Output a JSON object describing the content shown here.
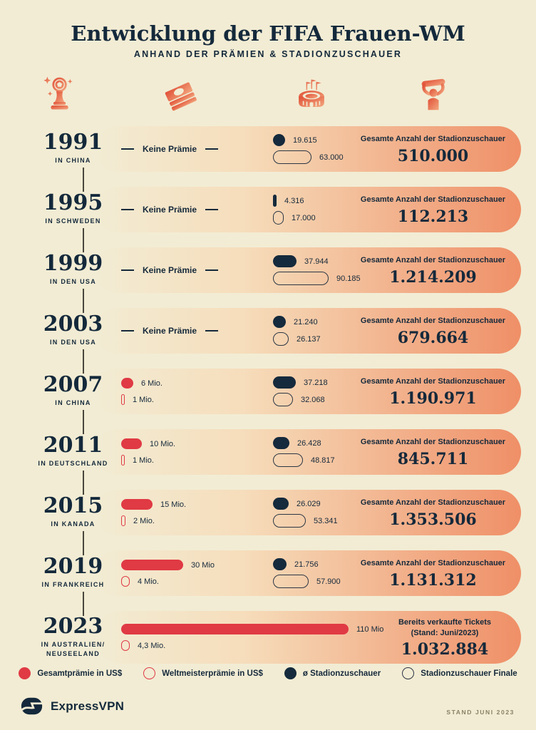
{
  "header": {
    "title": "Entwicklung der FIFA Frauen-WM",
    "subtitle": "ANHAND DER PRÄMIEN & STADIONZUSCHAUER"
  },
  "header_icons": [
    {
      "name": "trophy-icon"
    },
    {
      "name": "money-icon"
    },
    {
      "name": "stadium-icon"
    },
    {
      "name": "fan-icon"
    }
  ],
  "colors": {
    "background": "#F2ECD4",
    "navy": "#14293B",
    "red": "#E03A44",
    "band_salmon": "#EF8F67",
    "note_gray": "#8A8165"
  },
  "rows": [
    {
      "year": "1991",
      "location": "IN CHINA",
      "prize": {
        "type": "none",
        "label": "Keine Prämie"
      },
      "attendance": {
        "avg": 19615,
        "avg_label": "19.615",
        "final": 63000,
        "final_label": "63.000"
      },
      "total": {
        "caption": "Gesamte Anzahl der Stadionzuschauer",
        "value": "510.000"
      }
    },
    {
      "year": "1995",
      "location": "IN SCHWEDEN",
      "prize": {
        "type": "none",
        "label": "Keine Prämie"
      },
      "attendance": {
        "avg": 4316,
        "avg_label": "4.316",
        "final": 17000,
        "final_label": "17.000"
      },
      "total": {
        "caption": "Gesamte Anzahl der Stadionzuschauer",
        "value": "112.213"
      }
    },
    {
      "year": "1999",
      "location": "IN DEN USA",
      "prize": {
        "type": "none",
        "label": "Keine Prämie"
      },
      "attendance": {
        "avg": 37944,
        "avg_label": "37.944",
        "final": 90185,
        "final_label": "90.185"
      },
      "total": {
        "caption": "Gesamte Anzahl der Stadionzuschauer",
        "value": "1.214.209"
      }
    },
    {
      "year": "2003",
      "location": "IN DEN USA",
      "prize": {
        "type": "none",
        "label": "Keine Prämie"
      },
      "attendance": {
        "avg": 21240,
        "avg_label": "21.240",
        "final": 26137,
        "final_label": "26.137"
      },
      "total": {
        "caption": "Gesamte Anzahl der Stadionzuschauer",
        "value": "679.664"
      }
    },
    {
      "year": "2007",
      "location": "IN CHINA",
      "prize": {
        "type": "bars",
        "total_mio": 6,
        "total_label": "6 Mio.",
        "winner_mio": 1,
        "winner_label": "1 Mio."
      },
      "attendance": {
        "avg": 37218,
        "avg_label": "37.218",
        "final": 32068,
        "final_label": "32.068"
      },
      "total": {
        "caption": "Gesamte Anzahl der Stadionzuschauer",
        "value": "1.190.971"
      }
    },
    {
      "year": "2011",
      "location": "IN DEUTSCHLAND",
      "prize": {
        "type": "bars",
        "total_mio": 10,
        "total_label": "10 Mio.",
        "winner_mio": 1,
        "winner_label": "1 Mio."
      },
      "attendance": {
        "avg": 26428,
        "avg_label": "26.428",
        "final": 48817,
        "final_label": "48.817"
      },
      "total": {
        "caption": "Gesamte Anzahl der Stadionzuschauer",
        "value": "845.711"
      }
    },
    {
      "year": "2015",
      "location": "IN KANADA",
      "prize": {
        "type": "bars",
        "total_mio": 15,
        "total_label": "15 Mio.",
        "winner_mio": 2,
        "winner_label": "2 Mio."
      },
      "attendance": {
        "avg": 26029,
        "avg_label": "26.029",
        "final": 53341,
        "final_label": "53.341"
      },
      "total": {
        "caption": "Gesamte Anzahl der Stadionzuschauer",
        "value": "1.353.506"
      }
    },
    {
      "year": "2019",
      "location": "IN FRANKREICH",
      "prize": {
        "type": "bars",
        "total_mio": 30,
        "total_label": "30 Mio",
        "winner_mio": 4,
        "winner_label": "4 Mio."
      },
      "attendance": {
        "avg": 21756,
        "avg_label": "21.756",
        "final": 57900,
        "final_label": "57.900"
      },
      "total": {
        "caption": "Gesamte Anzahl der Stadionzuschauer",
        "value": "1.131.312"
      }
    },
    {
      "year": "2023",
      "location": "IN AUSTRALIEN/\nNEUSEELAND",
      "prize": {
        "type": "bars",
        "total_mio": 110,
        "total_label": "110 Mio",
        "winner_mio": 4.3,
        "winner_label": "4,3 Mio."
      },
      "attendance": null,
      "total": {
        "caption": "Bereits verkaufte Tickets\n(Stand: Juni/2023)",
        "value": "1.032.884"
      }
    }
  ],
  "legend": {
    "items": [
      {
        "label": "Gesamtprämie in US$",
        "swatch": "red-fill"
      },
      {
        "label": "Weltmeisterprämie in US$",
        "swatch": "red-out"
      },
      {
        "label": "ø Stadionzuschauer",
        "swatch": "navy-fill"
      },
      {
        "label": "Stadionzuschauer Finale",
        "swatch": "navy-out"
      }
    ]
  },
  "footer": {
    "brand": "ExpressVPN",
    "note": "STAND JUNI 2023"
  },
  "chart_data": {
    "type": "bar",
    "title": "Entwicklung der FIFA Frauen-WM",
    "subtitle": "Anhand der Prämien & Stadionzuschauer",
    "categories": [
      "1991 in China",
      "1995 in Schweden",
      "1999 in den USA",
      "2003 in den USA",
      "2007 in China",
      "2011 in Deutschland",
      "2015 in Kanada",
      "2019 in Frankreich",
      "2023 in Australien/Neuseeland"
    ],
    "series": [
      {
        "name": "Gesamtprämie in US$ (Mio.)",
        "values": [
          null,
          null,
          null,
          null,
          6,
          10,
          15,
          30,
          110
        ]
      },
      {
        "name": "Weltmeisterprämie in US$ (Mio.)",
        "values": [
          null,
          null,
          null,
          null,
          1,
          1,
          2,
          4,
          4.3
        ]
      },
      {
        "name": "ø Stadionzuschauer",
        "values": [
          19615,
          4316,
          37944,
          21240,
          37218,
          26428,
          26029,
          21756,
          null
        ]
      },
      {
        "name": "Stadionzuschauer Finale",
        "values": [
          63000,
          17000,
          90185,
          26137,
          32068,
          48817,
          53341,
          57900,
          null
        ]
      },
      {
        "name": "Gesamte Anzahl der Stadionzuschauer",
        "values": [
          510000,
          112213,
          1214209,
          679664,
          1190971,
          845711,
          1353506,
          1131312,
          1032884
        ]
      }
    ],
    "notes": "1991–2003: Keine Prämie. 2023 Gesamtzahl = bereits verkaufte Tickets (Stand: Juni/2023).",
    "legend_position": "bottom",
    "grid": false
  }
}
